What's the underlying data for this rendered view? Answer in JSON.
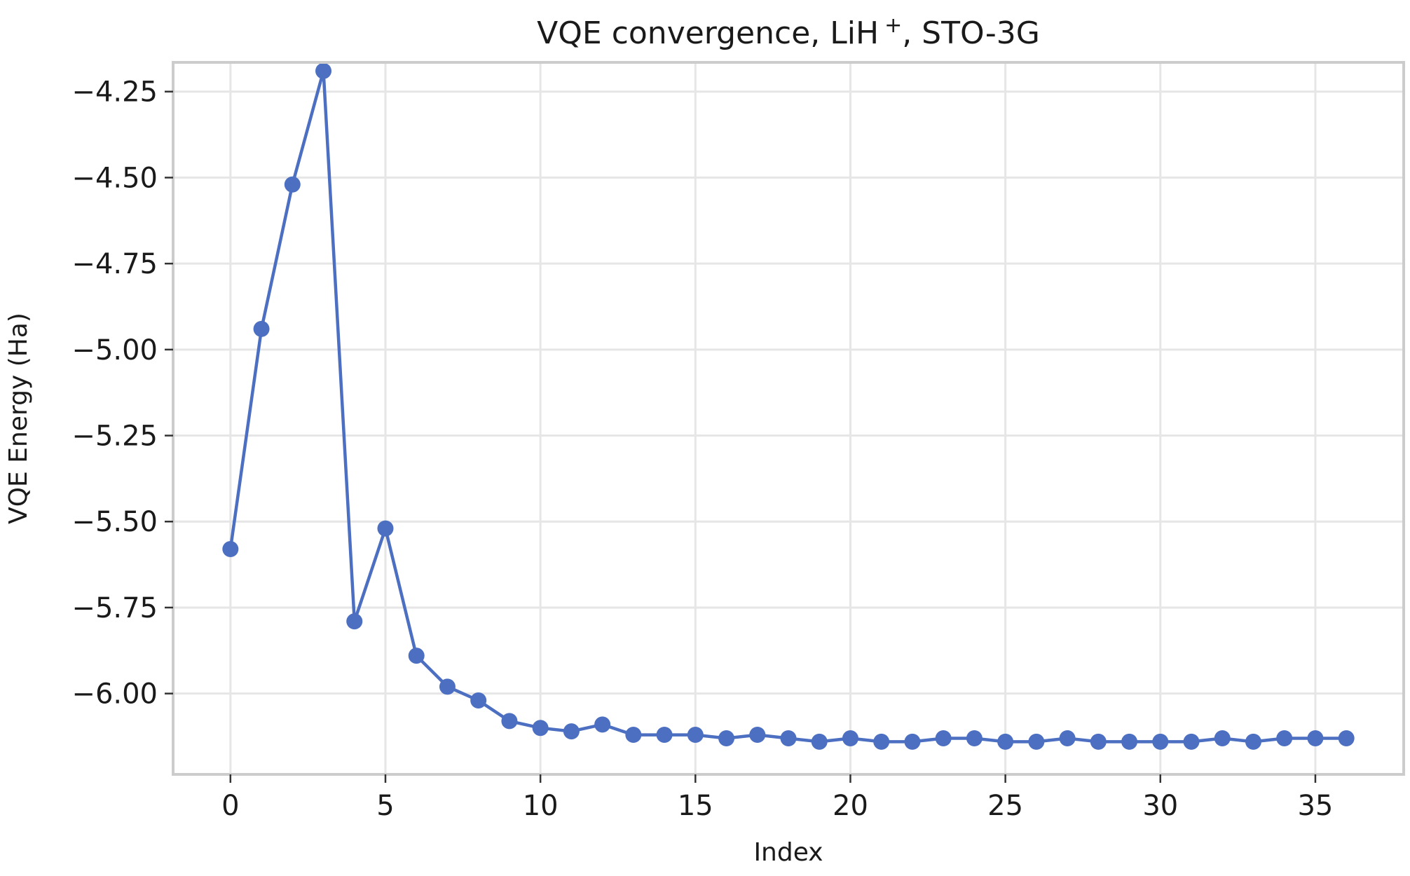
{
  "chart_data": {
    "type": "line",
    "title_main": "VQE convergence, LiH",
    "title_sup": "+",
    "title_tail": ", STO-3G",
    "xlabel": "Index",
    "ylabel": "VQE Energy (Ha)",
    "xlim": [
      -1.85,
      37.85
    ],
    "ylim": [
      -6.235,
      -4.165
    ],
    "xticks": [
      0,
      5,
      10,
      15,
      20,
      25,
      30,
      35
    ],
    "xtick_labels": [
      "0",
      "5",
      "10",
      "15",
      "20",
      "25",
      "30",
      "35"
    ],
    "yticks": [
      -4.25,
      -4.5,
      -4.75,
      -5.0,
      -5.25,
      -5.5,
      -5.75,
      -6.0
    ],
    "ytick_labels": [
      "−4.25",
      "−4.50",
      "−4.75",
      "−5.00",
      "−5.25",
      "−5.50",
      "−5.75",
      "−6.00"
    ],
    "grid": true,
    "series": [
      {
        "color": "#4c6fc1",
        "x": [
          0,
          1,
          2,
          3,
          4,
          5,
          6,
          7,
          8,
          9,
          10,
          11,
          12,
          13,
          14,
          15,
          16,
          17,
          18,
          19,
          20,
          21,
          22,
          23,
          24,
          25,
          26,
          27,
          28,
          29,
          30,
          31,
          32,
          33,
          34,
          35,
          36
        ],
        "y": [
          -5.58,
          -4.94,
          -4.52,
          -4.19,
          -5.79,
          -5.52,
          -5.89,
          -5.98,
          -6.02,
          -6.08,
          -6.1,
          -6.11,
          -6.09,
          -6.12,
          -6.12,
          -6.12,
          -6.13,
          -6.12,
          -6.13,
          -6.14,
          -6.13,
          -6.14,
          -6.14,
          -6.13,
          -6.13,
          -6.14,
          -6.14,
          -6.13,
          -6.14,
          -6.14,
          -6.14,
          -6.14,
          -6.13,
          -6.14,
          -6.13,
          -6.13,
          -6.13
        ]
      }
    ]
  }
}
